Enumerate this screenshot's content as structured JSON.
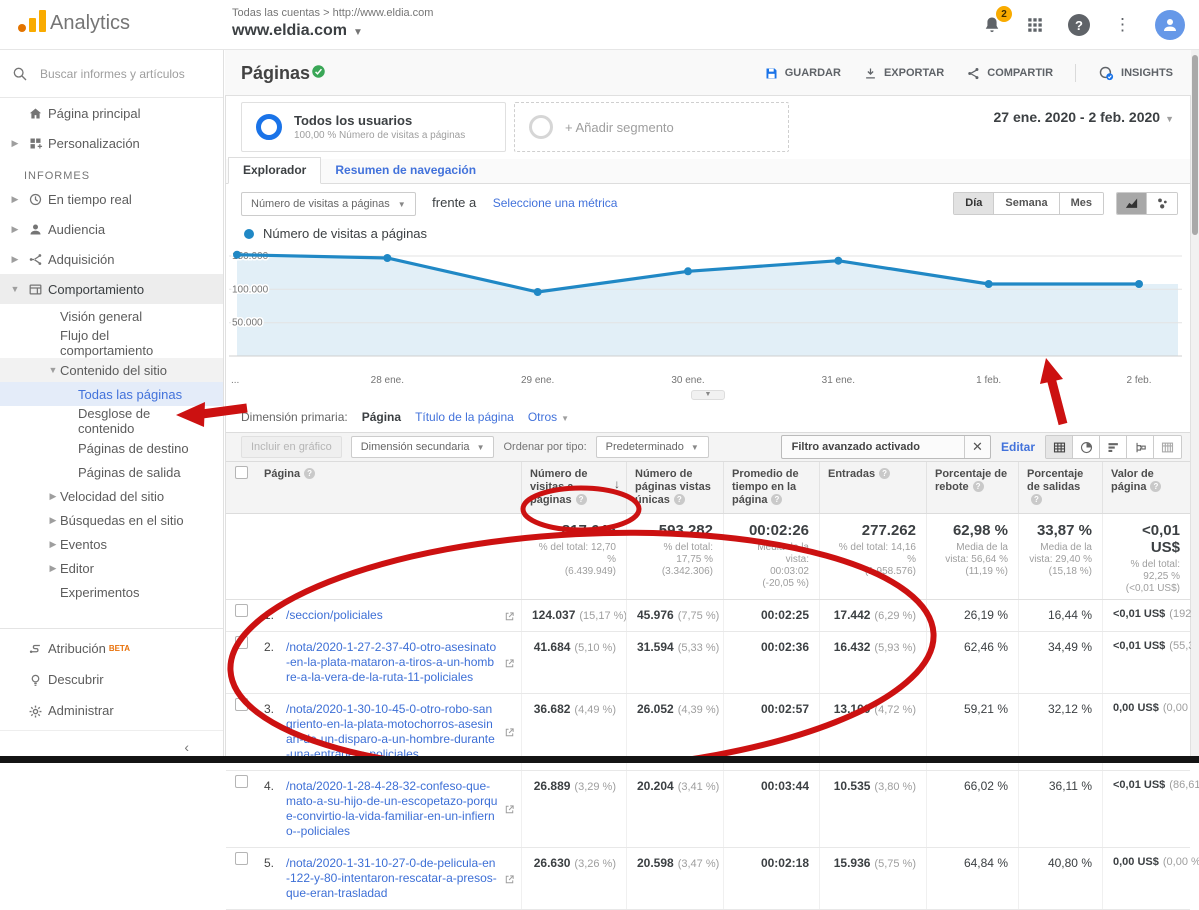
{
  "app": {
    "brand": "Analytics",
    "breadcrumb": "Todas las cuentas > http://www.eldia.com",
    "property": "www.eldia.com",
    "notification_count": "2"
  },
  "search": {
    "placeholder": "Buscar informes y artículos de"
  },
  "colors": {
    "accent": "#1a73e8",
    "link": "#4272db",
    "annotation": "#cc1111",
    "beta_badge": "#e8710a",
    "check_green": "#3aa757",
    "notification_badge": "#f9ab00"
  },
  "sidebar": {
    "items": [
      {
        "id": "home",
        "label": "Página principal",
        "icon": "home",
        "indent": 0,
        "arrow": ""
      },
      {
        "id": "customization",
        "label": "Personalización",
        "icon": "grid",
        "indent": 0,
        "arrow": "right"
      },
      {
        "id": "informes",
        "label": "INFORMES",
        "type": "header"
      },
      {
        "id": "realtime",
        "label": "En tiempo real",
        "icon": "clock",
        "indent": 0,
        "arrow": "right"
      },
      {
        "id": "audience",
        "label": "Audiencia",
        "icon": "person",
        "indent": 0,
        "arrow": "right"
      },
      {
        "id": "acquisition",
        "label": "Adquisición",
        "icon": "branch",
        "indent": 0,
        "arrow": "right"
      },
      {
        "id": "behavior",
        "label": "Comportamiento",
        "icon": "window",
        "indent": 0,
        "arrow": "down",
        "state": "open"
      },
      {
        "id": "behavior-overview",
        "label": "Visión general",
        "indent": 1
      },
      {
        "id": "behavior-flow",
        "label": "Flujo del comportamiento",
        "indent": 1
      },
      {
        "id": "site-content",
        "label": "Contenido del sitio",
        "indent": 1,
        "arrow": "down",
        "state": "sub"
      },
      {
        "id": "all-pages",
        "label": "Todas las páginas",
        "indent": 2,
        "state": "selected"
      },
      {
        "id": "content-drilldown",
        "label": "Desglose de contenido",
        "indent": 2
      },
      {
        "id": "landing-pages",
        "label": "Páginas de destino",
        "indent": 2
      },
      {
        "id": "exit-pages",
        "label": "Páginas de salida",
        "indent": 2
      },
      {
        "id": "site-speed",
        "label": "Velocidad del sitio",
        "indent": 1,
        "arrow": "right"
      },
      {
        "id": "site-search",
        "label": "Búsquedas en el sitio",
        "indent": 1,
        "arrow": "right"
      },
      {
        "id": "events",
        "label": "Eventos",
        "indent": 1,
        "arrow": "right"
      },
      {
        "id": "publisher",
        "label": "Editor",
        "indent": 1,
        "arrow": "right"
      },
      {
        "id": "experiments",
        "label": "Experimentos",
        "indent": 1
      }
    ],
    "pinned": [
      {
        "id": "attribution",
        "label": "Atribución",
        "badge": "BETA",
        "icon": "route"
      },
      {
        "id": "discover",
        "label": "Descubrir",
        "icon": "bulb"
      },
      {
        "id": "admin",
        "label": "Administrar",
        "icon": "gear"
      }
    ]
  },
  "report": {
    "title": "Páginas",
    "actions": {
      "save": "GUARDAR",
      "export": "EXPORTAR",
      "share": "COMPARTIR",
      "insights": "INSIGHTS"
    },
    "date_range": "27 ene. 2020 - 2 feb. 2020"
  },
  "segments": {
    "all_users": {
      "title": "Todos los usuarios",
      "subtitle": "100,00 % Número de visitas a páginas"
    },
    "add": "+ Añadir segmento"
  },
  "tabs": [
    {
      "label": "Explorador",
      "active": true
    },
    {
      "label": "Resumen de navegación",
      "active": false
    }
  ],
  "explorer": {
    "metric_dropdown": "Número de visitas a páginas",
    "versus": "frente a",
    "select_metric": "Seleccione una métrica",
    "granularity": [
      "Día",
      "Semana",
      "Mes"
    ],
    "granularity_active": "Día",
    "legend": "Número de visitas a páginas"
  },
  "chart_data": {
    "type": "line",
    "title": "Número de visitas a páginas",
    "x": [
      "27 ene.",
      "28 ene.",
      "29 ene.",
      "30 ene.",
      "31 ene.",
      "1 feb.",
      "2 feb."
    ],
    "x_labels_shown": [
      "...",
      "28 ene.",
      "29 ene.",
      "30 ene.",
      "31 ene.",
      "1 feb.",
      "2 feb."
    ],
    "values": [
      152000,
      147000,
      96000,
      127000,
      143000,
      108000,
      108000
    ],
    "y_ticks": [
      {
        "value": 150000,
        "label": "150.000"
      },
      {
        "value": 100000,
        "label": "100.000"
      },
      {
        "value": 50000,
        "label": "50.000"
      }
    ],
    "ylim": [
      0,
      165000
    ],
    "grid": true,
    "legend_position": "top-left",
    "line_color": "#2088c5",
    "fill_color": "#e2eff7"
  },
  "dimension_bar": {
    "label": "Dimensión primaria:",
    "options": [
      "Página",
      "Título de la página",
      "Otros"
    ],
    "selected": "Página"
  },
  "table_toolbar": {
    "plot_rows": "Incluir en gráfico",
    "secondary_dimension": "Dimensión secundaria",
    "sort_label": "Ordenar por tipo:",
    "sort_value": "Predeterminado",
    "filter_chip": "Filtro avanzado activado",
    "edit": "Editar"
  },
  "table": {
    "headers": [
      "Página",
      "Número de visitas a páginas",
      "Número de páginas vistas únicas",
      "Promedio de tiempo en la página",
      "Entradas",
      "Porcentaje de rebote",
      "Porcentaje de salidas",
      "Valor de página"
    ],
    "sorted_by": "Número de visitas a páginas",
    "totals": {
      "pageviews": "817.645",
      "pageviews_sub": "% del total: 12,70 %\n(6.439.949)",
      "unique": "593.282",
      "unique_sub": "% del total: 17,75 %\n(3.342.306)",
      "time": "00:02:26",
      "time_sub": "Media de la vista:\n00:03:02\n(-20,05 %)",
      "entrances": "277.262",
      "entrances_sub": "% del total: 14,16 %\n(1.958.576)",
      "bounce": "62,98 %",
      "bounce_sub": "Media de la\nvista: 56,64 %\n(11,19 %)",
      "exit": "33,87 %",
      "exit_sub": "Media de la\nvista: 29,40 %\n(15,18 %)",
      "value": "<0,01 US$",
      "value_sub": "% del total: 92,25 %\n(<0,01 US$)"
    },
    "rows": [
      {
        "index": "1.",
        "page": "/seccion/policiales",
        "pageviews": "124.037",
        "pageviews_pct": "(15,17 %)",
        "unique": "45.976",
        "unique_pct": "(7,75 %)",
        "time": "00:02:25",
        "entrances": "17.442",
        "entrances_pct": "(6,29 %)",
        "bounce": "26,19 %",
        "exit": "16,44 %",
        "value": "<0,01 US$",
        "value_pct": "(192,08 %)"
      },
      {
        "index": "2.",
        "page": "/nota/2020-1-27-2-37-40-otro-asesinato-en-la-plata-mataron-a-tiros-a-un-hombre-a-la-vera-de-la-ruta-11-policiales",
        "pageviews": "41.684",
        "pageviews_pct": "(5,10 %)",
        "unique": "31.594",
        "unique_pct": "(5,33 %)",
        "time": "00:02:36",
        "entrances": "16.432",
        "entrances_pct": "(5,93 %)",
        "bounce": "62,46 %",
        "exit": "34,49 %",
        "value": "<0,01 US$",
        "value_pct": "(55,38 %)"
      },
      {
        "index": "3.",
        "page": "/nota/2020-1-30-10-45-0-otro-robo-sangriento-en-la-plata-motochorros-asesinan-de-un-disparo-a-un-hombre-durante-una-entradera-policiales",
        "pageviews": "36.682",
        "pageviews_pct": "(4,49 %)",
        "unique": "26.052",
        "unique_pct": "(4,39 %)",
        "time": "00:02:57",
        "entrances": "13.100",
        "entrances_pct": "(4,72 %)",
        "bounce": "59,21 %",
        "exit": "32,12 %",
        "value": "0,00 US$",
        "value_pct": "(0,00 %)"
      },
      {
        "index": "4.",
        "page": "/nota/2020-1-28-4-28-32-confeso-que-mato-a-su-hijo-de-un-escopetazo-porque-convirtio-la-vida-familiar-en-un-infierno--policiales",
        "pageviews": "26.889",
        "pageviews_pct": "(3,29 %)",
        "unique": "20.204",
        "unique_pct": "(3,41 %)",
        "time": "00:03:44",
        "entrances": "10.535",
        "entrances_pct": "(3,80 %)",
        "bounce": "66,02 %",
        "exit": "36,11 %",
        "value": "<0,01 US$",
        "value_pct": "(86,61 %)"
      },
      {
        "index": "5.",
        "page": "/nota/2020-1-31-10-27-0-de-pelicula-en-122-y-80-intentaron-rescatar-a-presos-que-eran-trasladad",
        "pageviews": "26.630",
        "pageviews_pct": "(3,26 %)",
        "unique": "20.598",
        "unique_pct": "(3,47 %)",
        "time": "00:02:18",
        "entrances": "15.936",
        "entrances_pct": "(5,75 %)",
        "bounce": "64,84 %",
        "exit": "40,80 %",
        "value": "0,00 US$",
        "value_pct": "(0,00 %)"
      }
    ]
  }
}
